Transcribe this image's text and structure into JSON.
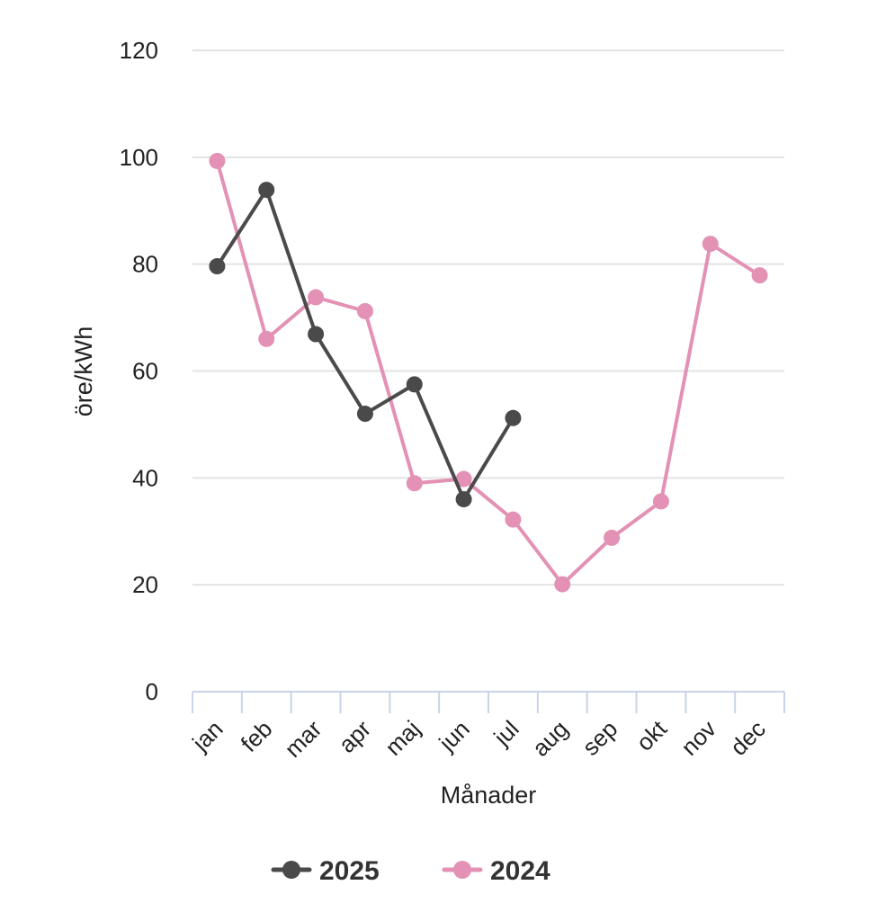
{
  "chart_data": {
    "type": "line",
    "title": "",
    "xlabel": "Månader",
    "ylabel": "öre/kWh",
    "categories": [
      "jan",
      "feb",
      "mar",
      "apr",
      "maj",
      "jun",
      "jul",
      "aug",
      "sep",
      "okt",
      "nov",
      "dec"
    ],
    "ylim": [
      0,
      120
    ],
    "yticks": [
      "0",
      "20",
      "40",
      "60",
      "80",
      "100",
      "120"
    ],
    "grid": true,
    "legend_position": "bottom",
    "series": [
      {
        "name": "2025",
        "color": "#4a4a4a",
        "values": [
          79.6,
          93.9,
          66.9,
          52.0,
          57.5,
          36.0,
          51.2,
          null,
          null,
          null,
          null,
          null
        ]
      },
      {
        "name": "2024",
        "color": "#e391b4",
        "values": [
          99.3,
          66.0,
          73.8,
          71.2,
          39.0,
          39.8,
          32.2,
          20.1,
          28.8,
          35.6,
          83.8,
          77.9
        ]
      }
    ]
  }
}
